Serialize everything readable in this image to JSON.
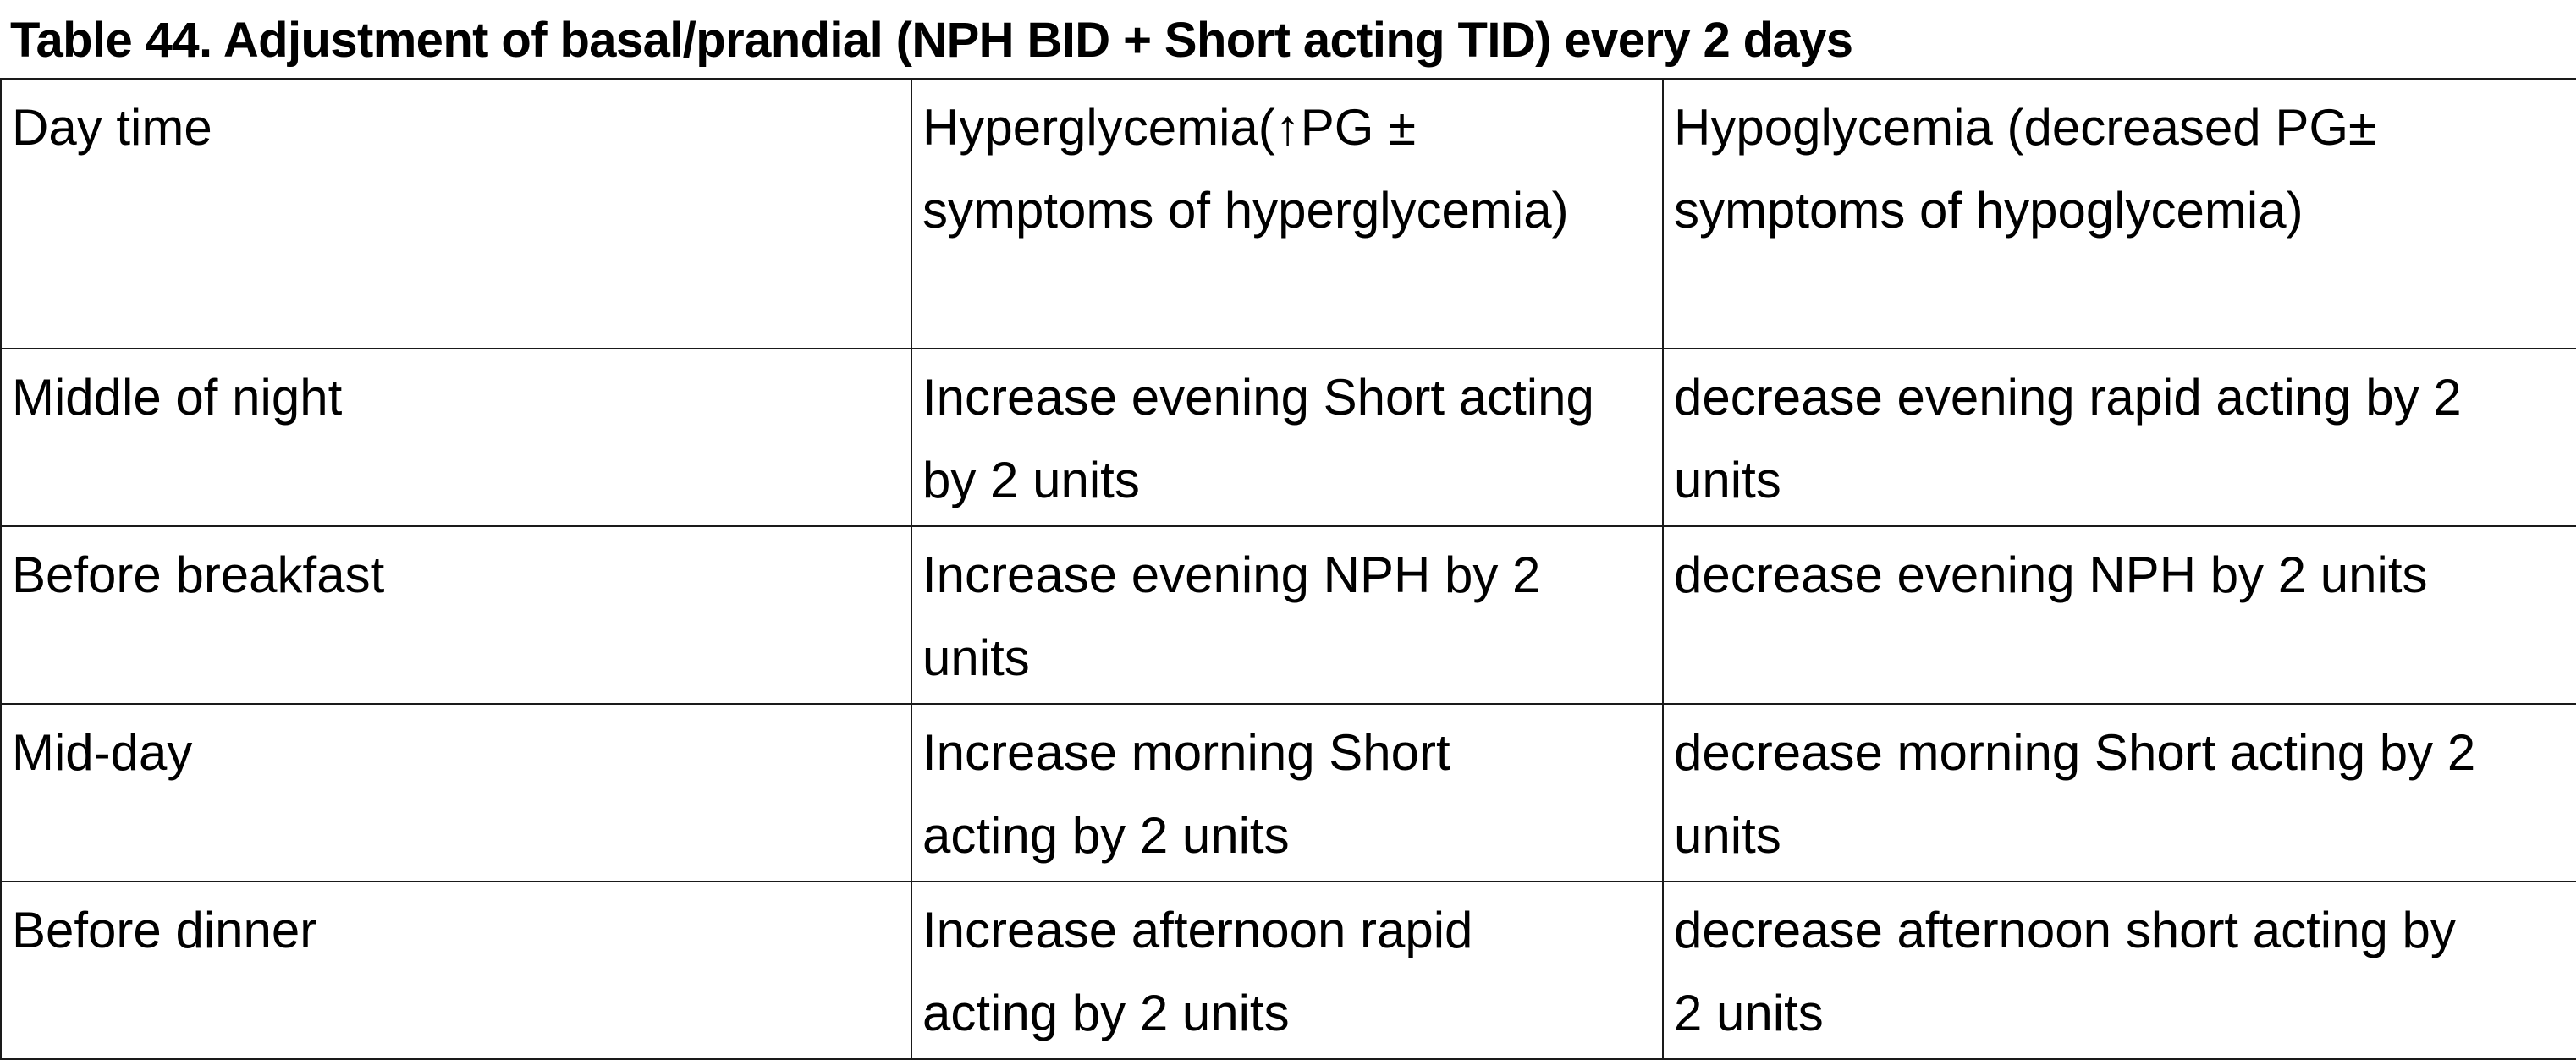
{
  "document": {
    "title": "Table 44. Adjustment of basal/prandial (NPH BID + Short acting TID) every 2 days"
  },
  "table": {
    "headers": [
      {
        "lines": [
          "Day time"
        ]
      },
      {
        "lines": [
          "Hyperglycemia(↑PG ±",
          "symptoms of hyperglycemia)"
        ]
      },
      {
        "lines": [
          "Hypoglycemia (decreased PG±",
          "symptoms of hypoglycemia)"
        ]
      }
    ],
    "rows": [
      {
        "day_time": "Middle of night",
        "hyperglycemia": [
          "Increase evening Short acting",
          "by 2 units"
        ],
        "hypoglycemia": [
          "decrease evening rapid acting by 2",
          "units"
        ]
      },
      {
        "day_time": "Before breakfast",
        "hyperglycemia": [
          "Increase evening NPH by 2",
          "units"
        ],
        "hypoglycemia": [
          "decrease evening NPH by 2 units"
        ]
      },
      {
        "day_time": "Mid-day",
        "hyperglycemia": [
          "Increase morning Short",
          "acting by 2 units"
        ],
        "hypoglycemia": [
          "decrease morning Short acting by 2",
          "units"
        ]
      },
      {
        "day_time": "Before dinner",
        "hyperglycemia": [
          "Increase afternoon rapid",
          "acting by 2 units"
        ],
        "hypoglycemia": [
          "decrease afternoon short acting by",
          "2 units"
        ]
      }
    ]
  }
}
